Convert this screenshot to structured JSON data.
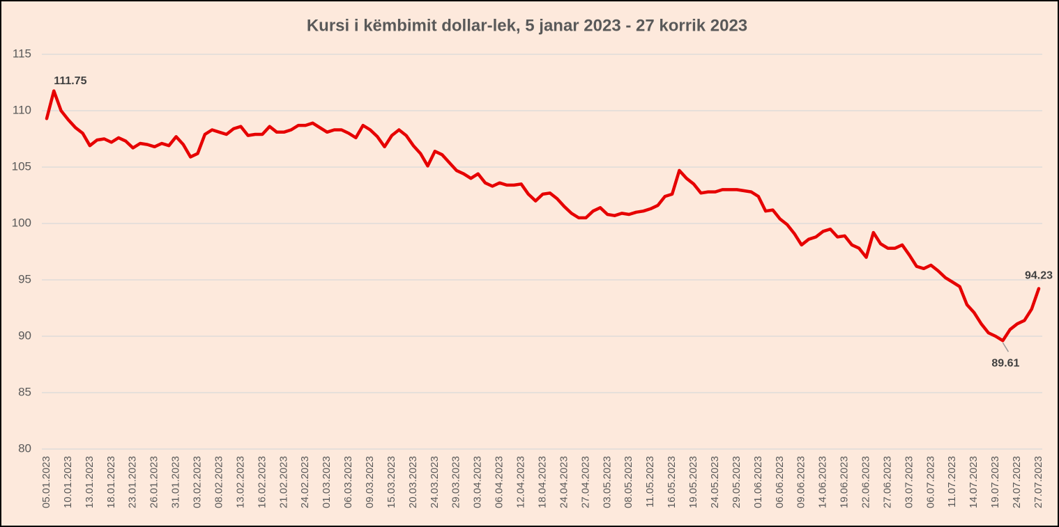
{
  "chart_data": {
    "type": "line",
    "title": "Kursi i këmbimit dollar-lek, 5 janar 2023 - 27 korrik 2023",
    "categories": [
      "05.01.2023",
      null,
      null,
      "10.01.2023",
      null,
      null,
      "13.01.2023",
      null,
      null,
      "18.01.2023",
      null,
      null,
      "23.01.2023",
      null,
      null,
      "26.01.2023",
      null,
      null,
      "31.01.2023",
      null,
      null,
      "03.02.2023",
      null,
      null,
      "08.02.2023",
      null,
      null,
      "13.02.2023",
      null,
      null,
      "16.02.2023",
      null,
      null,
      "21.02.2023",
      null,
      null,
      "24.02.2023",
      null,
      null,
      "01.03.2023",
      null,
      null,
      "06.03.2023",
      null,
      null,
      "09.03.2023",
      null,
      null,
      "15.03.2023",
      null,
      null,
      "20.03.2023",
      null,
      null,
      "24.03.2023",
      null,
      null,
      "29.03.2023",
      null,
      null,
      "03.04.2023",
      null,
      null,
      "06.04.2023",
      null,
      null,
      "12.04.2023",
      null,
      null,
      "18.04.2023",
      null,
      null,
      "24.04.2023",
      null,
      null,
      "27.04.2023",
      null,
      null,
      "03.05.2023",
      null,
      null,
      "08.05.2023",
      null,
      null,
      "11.05.2023",
      null,
      null,
      "16.05.2023",
      null,
      null,
      "19.05.2023",
      null,
      null,
      "24.05.2023",
      null,
      null,
      "29.05.2023",
      null,
      null,
      "01.06.2023",
      null,
      null,
      "06.06.2023",
      null,
      null,
      "09.06.2023",
      null,
      null,
      "14.06.2023",
      null,
      null,
      "19.06.2023",
      null,
      null,
      "22.06.2023",
      null,
      null,
      "27.06.2023",
      null,
      null,
      "03.07.2023",
      null,
      null,
      "06.07.2023",
      null,
      null,
      "11.07.2023",
      null,
      null,
      "14.07.2023",
      null,
      null,
      "19.07.2023",
      null,
      null,
      "24.07.2023",
      null,
      null,
      "27.07.2023"
    ],
    "values": [
      109.3,
      111.75,
      110.0,
      109.2,
      108.5,
      108.0,
      106.9,
      107.4,
      107.5,
      107.2,
      107.6,
      107.3,
      106.7,
      107.1,
      107.0,
      106.8,
      107.1,
      106.9,
      107.7,
      107.0,
      105.9,
      106.2,
      107.9,
      108.3,
      108.1,
      107.9,
      108.4,
      108.6,
      107.8,
      107.9,
      107.9,
      108.6,
      108.1,
      108.1,
      108.3,
      108.7,
      108.7,
      108.9,
      108.5,
      108.1,
      108.3,
      108.3,
      108.0,
      107.6,
      108.7,
      108.3,
      107.7,
      106.8,
      107.8,
      108.3,
      107.8,
      106.9,
      106.2,
      105.1,
      106.4,
      106.1,
      105.4,
      104.7,
      104.4,
      104.0,
      104.4,
      103.6,
      103.3,
      103.6,
      103.4,
      103.4,
      103.5,
      102.6,
      102.0,
      102.6,
      102.7,
      102.2,
      101.5,
      100.9,
      100.5,
      100.5,
      101.1,
      101.4,
      100.8,
      100.7,
      100.9,
      100.8,
      101.0,
      101.1,
      101.3,
      101.6,
      102.4,
      102.6,
      104.7,
      104.0,
      103.5,
      102.7,
      102.8,
      102.8,
      103.0,
      103.0,
      103.0,
      102.9,
      102.8,
      102.4,
      101.1,
      101.2,
      100.4,
      99.9,
      99.1,
      98.1,
      98.6,
      98.8,
      99.3,
      99.5,
      98.8,
      98.9,
      98.1,
      97.8,
      97.0,
      99.2,
      98.2,
      97.8,
      97.8,
      98.1,
      97.2,
      96.2,
      96.0,
      96.3,
      95.8,
      95.2,
      94.8,
      94.4,
      92.8,
      92.1,
      91.1,
      90.3,
      90.0,
      89.61,
      90.6,
      91.1,
      91.4,
      92.4,
      94.23
    ],
    "value_labels": [
      null,
      "111.75",
      null,
      null,
      null,
      null,
      null,
      null,
      null,
      null,
      null,
      null,
      null,
      null,
      null,
      null,
      null,
      null,
      null,
      null,
      null,
      null,
      null,
      null,
      null,
      null,
      null,
      null,
      null,
      null,
      null,
      null,
      null,
      null,
      null,
      null,
      null,
      null,
      null,
      null,
      null,
      null,
      null,
      null,
      null,
      null,
      null,
      null,
      null,
      null,
      null,
      null,
      null,
      null,
      null,
      null,
      null,
      null,
      null,
      null,
      null,
      null,
      null,
      null,
      null,
      null,
      null,
      null,
      null,
      null,
      null,
      null,
      null,
      null,
      null,
      null,
      null,
      null,
      null,
      null,
      null,
      null,
      null,
      null,
      null,
      null,
      null,
      null,
      null,
      null,
      null,
      null,
      null,
      null,
      null,
      null,
      null,
      null,
      null,
      null,
      null,
      null,
      null,
      null,
      null,
      null,
      null,
      null,
      null,
      null,
      null,
      null,
      null,
      null,
      null,
      null,
      null,
      null,
      null,
      null,
      null,
      null,
      null,
      null,
      null,
      null,
      null,
      null,
      null,
      null,
      null,
      null,
      null,
      "89.61",
      null,
      null,
      null,
      null,
      "94.23"
    ],
    "color": "#e60000",
    "ylim": [
      80,
      115
    ],
    "yticks": [
      80,
      85,
      90,
      95,
      100,
      105,
      110,
      115
    ],
    "grid": true
  }
}
